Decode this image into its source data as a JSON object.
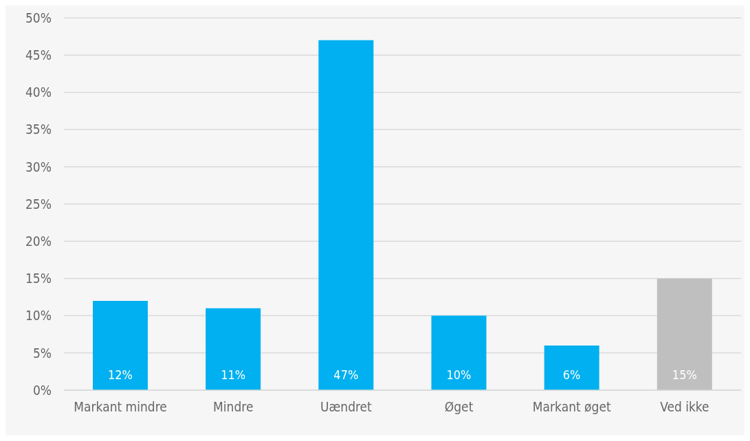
{
  "chart_data": {
    "type": "bar",
    "categories": [
      "Markant mindre",
      "Mindre",
      "Uændret",
      "Øget",
      "Markant øget",
      "Ved ikke"
    ],
    "values": [
      12,
      11,
      47,
      10,
      6,
      15
    ],
    "colors": [
      "#00b0f0",
      "#00b0f0",
      "#00b0f0",
      "#00b0f0",
      "#00b0f0",
      "#bfbfbf"
    ],
    "value_labels": [
      "12%",
      "11%",
      "47%",
      "10%",
      "6%",
      "15%"
    ],
    "ylim": [
      0,
      50
    ],
    "yticks": [
      {
        "value": 0,
        "label": "0%"
      },
      {
        "value": 5,
        "label": "5%"
      },
      {
        "value": 10,
        "label": "10%"
      },
      {
        "value": 15,
        "label": "15%"
      },
      {
        "value": 20,
        "label": "20%"
      },
      {
        "value": 25,
        "label": "25%"
      },
      {
        "value": 30,
        "label": "30%"
      },
      {
        "value": 35,
        "label": "35%"
      },
      {
        "value": 40,
        "label": "40%"
      },
      {
        "value": 45,
        "label": "45%"
      },
      {
        "value": 50,
        "label": "50%"
      }
    ],
    "grid": "y"
  }
}
